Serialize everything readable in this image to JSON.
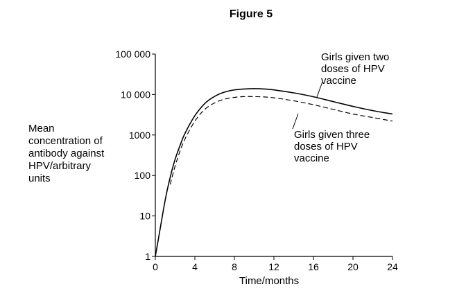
{
  "figure": {
    "title": "Figure 5"
  },
  "annotations": {
    "two_doses": [
      "Girls given two",
      "doses of HPV",
      "vaccine"
    ],
    "three_doses": [
      "Girls given three",
      "doses of HPV",
      "vaccine"
    ]
  },
  "chart_data": {
    "type": "line",
    "title": "Figure 5",
    "xlabel": "Time/months",
    "ylabel_lines": [
      "Mean",
      "concentration of",
      "antibody against",
      "HPV/arbitrary",
      "units"
    ],
    "x_ticks": [
      0,
      4,
      8,
      12,
      16,
      20,
      24
    ],
    "y_ticks": [
      1,
      10,
      100,
      1000,
      10000,
      100000
    ],
    "y_tick_labels": [
      "1",
      "10",
      "100",
      "1000",
      "10 000",
      "100 000"
    ],
    "xlim": [
      0,
      24
    ],
    "ylim": [
      1,
      100000
    ],
    "y_scale": "log",
    "grid": false,
    "series": [
      {
        "name": "Girls given two doses of HPV vaccine",
        "style": "solid",
        "color": "#000000",
        "x": [
          0,
          0.5,
          1,
          1.5,
          2,
          2.5,
          3,
          4,
          5,
          6,
          7,
          8,
          9,
          10,
          11,
          12,
          14,
          16,
          18,
          20,
          22,
          24
        ],
        "y": [
          1,
          5,
          25,
          90,
          250,
          550,
          1100,
          3000,
          6000,
          9000,
          11500,
          13000,
          13700,
          14000,
          13700,
          13000,
          11000,
          8800,
          6700,
          5100,
          4000,
          3300
        ]
      },
      {
        "name": "Girls given three doses of HPV vaccine",
        "style": "dashed",
        "color": "#000000",
        "x": [
          1.5,
          2,
          2.5,
          3,
          4,
          5,
          6,
          7,
          8,
          9,
          10,
          11,
          12,
          14,
          16,
          18,
          20,
          22,
          24
        ],
        "y": [
          60,
          170,
          400,
          800,
          2200,
          4300,
          6200,
          7700,
          8500,
          8900,
          8900,
          8700,
          8300,
          7000,
          5600,
          4300,
          3300,
          2700,
          2200
        ]
      }
    ]
  }
}
